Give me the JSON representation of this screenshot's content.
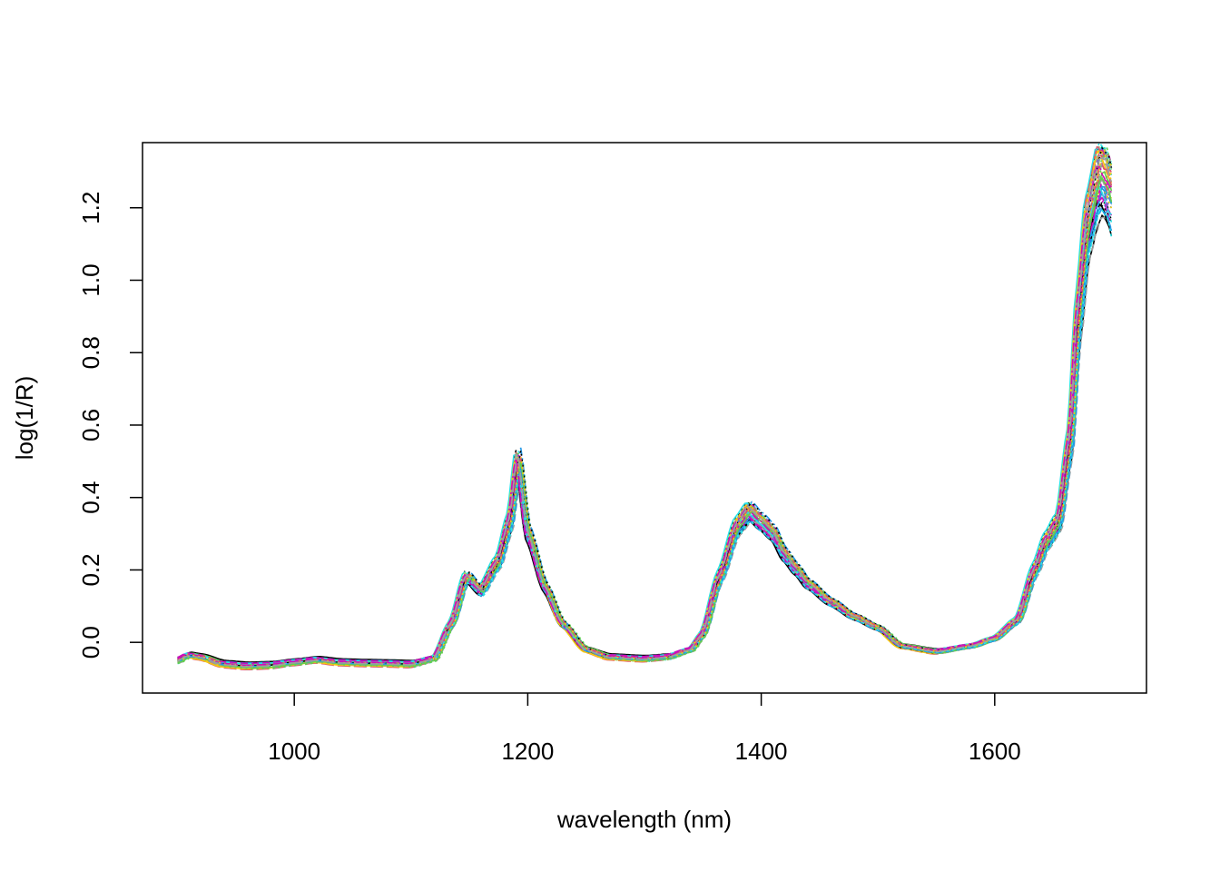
{
  "chart_data": {
    "type": "line",
    "title": "",
    "xlabel": "wavelength (nm)",
    "ylabel": "log(1/R)",
    "xlim": [
      870,
      1730
    ],
    "ylim": [
      -0.14,
      1.38
    ],
    "x_ticks": [
      1000,
      1200,
      1400,
      1600
    ],
    "y_ticks": [
      0.0,
      0.2,
      0.4,
      0.6,
      0.8,
      1.0,
      1.2
    ],
    "x_tick_labels": [
      "1000",
      "1200",
      "1400",
      "1600"
    ],
    "y_tick_labels": [
      "0.0",
      "0.2",
      "0.4",
      "0.6",
      "0.8",
      "1.0",
      "1.2"
    ],
    "grid": false,
    "legend": "none",
    "series_colors": [
      "#000000",
      "#DF536B",
      "#61D04F",
      "#2297E6",
      "#28E2E5",
      "#CD0BBC",
      "#F5C710",
      "#9E9E9E"
    ],
    "reference_spectrum": {
      "x": [
        900,
        910,
        920,
        940,
        960,
        980,
        1000,
        1020,
        1040,
        1060,
        1080,
        1100,
        1120,
        1135,
        1148,
        1160,
        1175,
        1185,
        1192,
        1200,
        1215,
        1230,
        1250,
        1270,
        1300,
        1320,
        1340,
        1350,
        1365,
        1380,
        1390,
        1400,
        1410,
        1420,
        1430,
        1440,
        1460,
        1480,
        1500,
        1520,
        1550,
        1580,
        1600,
        1620,
        1635,
        1645,
        1655,
        1665,
        1672,
        1680,
        1690,
        1695,
        1700
      ],
      "y": [
        -0.05,
        -0.035,
        -0.04,
        -0.06,
        -0.065,
        -0.063,
        -0.055,
        -0.048,
        -0.055,
        -0.057,
        -0.058,
        -0.06,
        -0.045,
        0.05,
        0.18,
        0.14,
        0.22,
        0.33,
        0.5,
        0.3,
        0.15,
        0.05,
        -0.02,
        -0.04,
        -0.045,
        -0.04,
        -0.02,
        0.02,
        0.18,
        0.32,
        0.36,
        0.33,
        0.3,
        0.24,
        0.2,
        0.16,
        0.11,
        0.07,
        0.04,
        -0.01,
        -0.025,
        -0.01,
        0.01,
        0.06,
        0.2,
        0.28,
        0.33,
        0.55,
        0.9,
        1.15,
        1.28,
        1.27,
        1.22
      ]
    }
  }
}
